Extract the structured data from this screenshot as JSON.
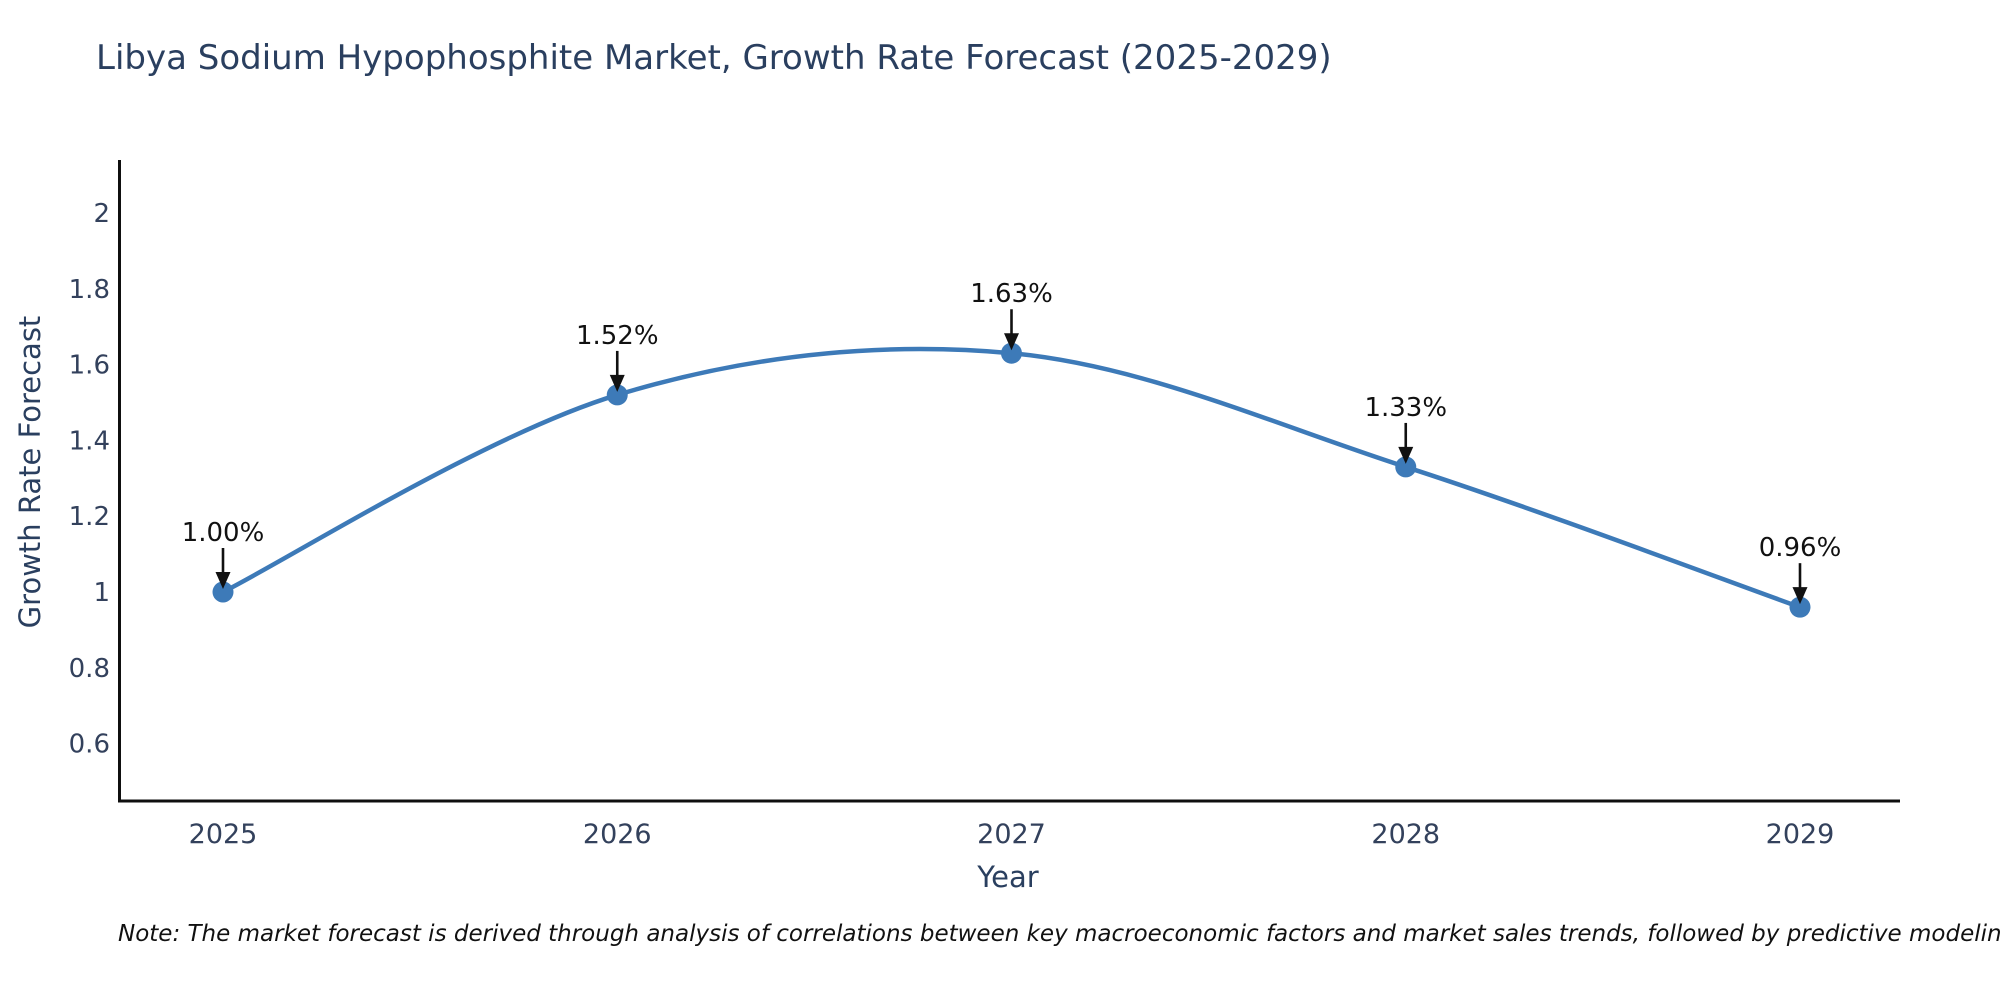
{
  "title": "Libya Sodium Hypophosphite Market, Growth Rate Forecast (2025-2029)",
  "note": "Note: The market forecast is derived through analysis of correlations between key macroeconomic factors and market sales trends, followed by predictive modeling to project future sales",
  "chart_data": {
    "type": "line",
    "title": "Libya Sodium Hypophosphite Market, Growth Rate Forecast (2025-2029)",
    "x": [
      2025,
      2026,
      2027,
      2028,
      2029
    ],
    "values": [
      1.0,
      1.52,
      1.63,
      1.33,
      0.96
    ],
    "point_labels": [
      "1.00%",
      "1.52%",
      "1.63%",
      "1.33%",
      "0.96%"
    ],
    "xlabel": "Year",
    "ylabel": "Growth Rate Forecast",
    "yticks": [
      "2",
      "1.8",
      "1.6",
      "1.4",
      "1.2",
      "1",
      "0.8",
      "0.6"
    ],
    "ytick_values": [
      2,
      1.8,
      1.6,
      1.4,
      1.2,
      1,
      0.8,
      0.6
    ],
    "ylim": [
      0.45,
      2.14
    ],
    "grid": false,
    "legend": false,
    "smooth": true,
    "line_color": "#3d7ab8",
    "marker_color": "#3d7ab8",
    "annotation_color": "#111111"
  },
  "colors": {
    "background": "#ffffff",
    "axis": "#0f0f0f",
    "text": "#2a3f5f",
    "tick": "#33415c",
    "note": "#111111"
  }
}
